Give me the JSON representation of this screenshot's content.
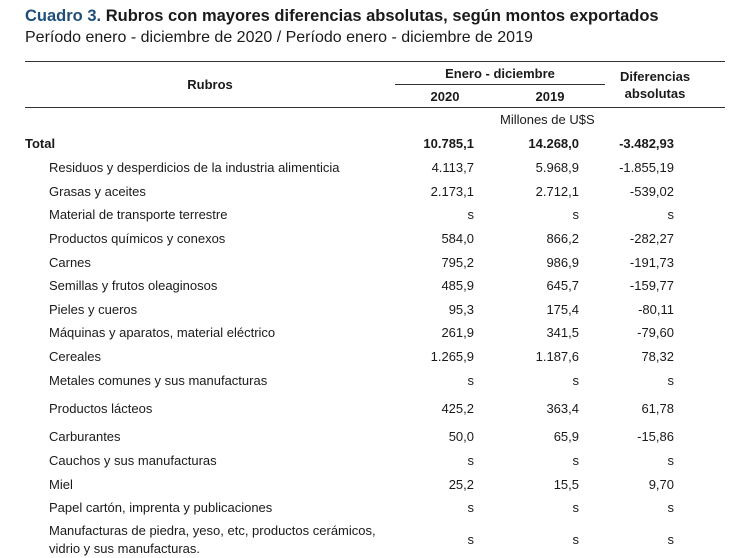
{
  "title": {
    "number": "Cuadro 3.",
    "text": "Rubros con mayores diferencias absolutas, según montos exportados"
  },
  "subtitle": "Período enero - diciembre de 2020 / Período enero - diciembre de 2019",
  "header": {
    "rubros": "Rubros",
    "period": "Enero - diciembre",
    "year1": "2020",
    "year2": "2019",
    "diff_line1": "Diferencias",
    "diff_line2": "absolutas",
    "units": "Millones de U$S"
  },
  "rows": [
    {
      "label": "Total",
      "v2020": "10.785,1",
      "v2019": "14.268,0",
      "diff": "-3.482,93"
    },
    {
      "label": "Residuos y desperdicios de la industria alimenticia",
      "v2020": "4.113,7",
      "v2019": "5.968,9",
      "diff": "-1.855,19"
    },
    {
      "label": "Grasas y aceites",
      "v2020": "2.173,1",
      "v2019": "2.712,1",
      "diff": "-539,02"
    },
    {
      "label": "Material de transporte terrestre",
      "v2020": "s",
      "v2019": "s",
      "diff": "s"
    },
    {
      "label": "Productos químicos y conexos",
      "v2020": "584,0",
      "v2019": "866,2",
      "diff": "-282,27"
    },
    {
      "label": "Carnes",
      "v2020": "795,2",
      "v2019": "986,9",
      "diff": "-191,73"
    },
    {
      "label": "Semillas y frutos oleaginosos",
      "v2020": "485,9",
      "v2019": "645,7",
      "diff": "-159,77"
    },
    {
      "label": "Pieles y cueros",
      "v2020": "95,3",
      "v2019": "175,4",
      "diff": "-80,11"
    },
    {
      "label": "Máquinas y aparatos, material eléctrico",
      "v2020": "261,9",
      "v2019": "341,5",
      "diff": "-79,60"
    },
    {
      "label": "Cereales",
      "v2020": "1.265,9",
      "v2019": "1.187,6",
      "diff": "78,32"
    },
    {
      "label": "Metales comunes y sus manufacturas",
      "v2020": "s",
      "v2019": "s",
      "diff": "s"
    },
    {
      "label": "Productos lácteos",
      "v2020": "425,2",
      "v2019": "363,4",
      "diff": "61,78"
    },
    {
      "label": "Carburantes",
      "v2020": "50,0",
      "v2019": "65,9",
      "diff": "-15,86"
    },
    {
      "label": "Cauchos y sus manufacturas",
      "v2020": "s",
      "v2019": "s",
      "diff": "s"
    },
    {
      "label": "Miel",
      "v2020": "25,2",
      "v2019": "15,5",
      "diff": "9,70"
    },
    {
      "label": "Papel cartón, imprenta y publicaciones",
      "v2020": "s",
      "v2019": "s",
      "diff": "s"
    },
    {
      "label": "Manufacturas de piedra, yeso, etc, productos cerámicos, vidrio y sus manufacturas.",
      "v2020": "s",
      "v2019": "s",
      "diff": "s"
    }
  ]
}
